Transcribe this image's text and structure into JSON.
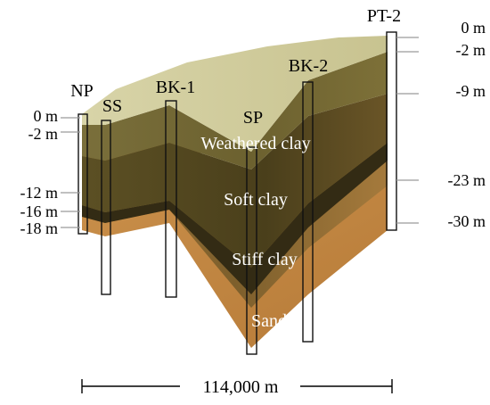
{
  "boreholes": [
    {
      "id": "np",
      "label": "NP"
    },
    {
      "id": "ss",
      "label": "SS"
    },
    {
      "id": "bk1",
      "label": "BK-1"
    },
    {
      "id": "sp",
      "label": "SP"
    },
    {
      "id": "bk2",
      "label": "BK-2"
    },
    {
      "id": "pt2",
      "label": "PT-2"
    }
  ],
  "layers": {
    "weathered": "Weathered clay",
    "soft": "Soft clay",
    "stiff": "Stiff clay",
    "sand": "Sand"
  },
  "left_depths": [
    "0 m",
    "-2 m",
    "-12 m",
    "-16 m",
    "-18 m"
  ],
  "right_depths": [
    "0 m",
    "-2 m",
    "-9 m",
    "-23 m",
    "-30 m"
  ],
  "width_label": "114,000 m",
  "colors": {
    "surface": "#cfc99a",
    "weathered": "#6f6432",
    "soft": "#4f431d",
    "thin_dark": "#2e2712",
    "stiff": "#8b6a35",
    "sand": "#c48a47"
  }
}
